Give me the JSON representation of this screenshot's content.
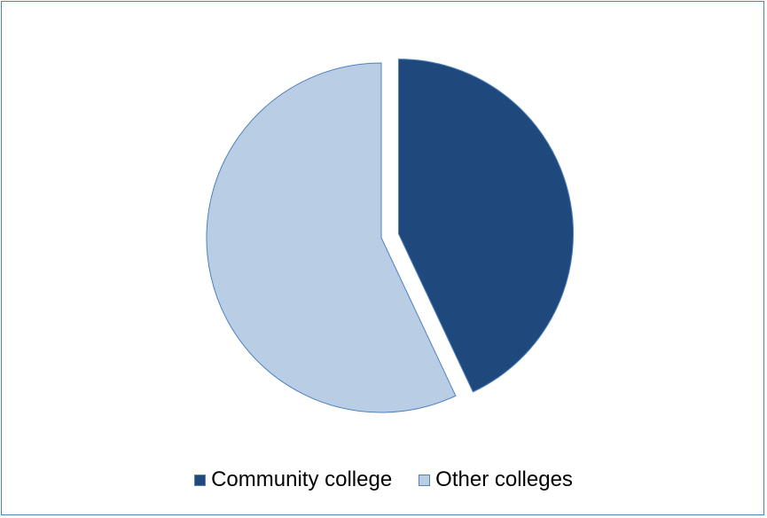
{
  "chart_data": {
    "type": "pie",
    "title": "",
    "categories": [
      "Community college",
      "Other colleges"
    ],
    "values": [
      43,
      57
    ],
    "colors": [
      "#1f497d",
      "#b9cde5"
    ],
    "slice_border_color": "#4f81bd",
    "exploded_slice": "Community college",
    "start_angle_deg": 0,
    "direction": "clockwise",
    "legend_position": "bottom"
  },
  "legend": {
    "items": [
      {
        "label": "Community college",
        "color": "#1f497d"
      },
      {
        "label": "Other colleges",
        "color": "#b9cde5"
      }
    ]
  }
}
